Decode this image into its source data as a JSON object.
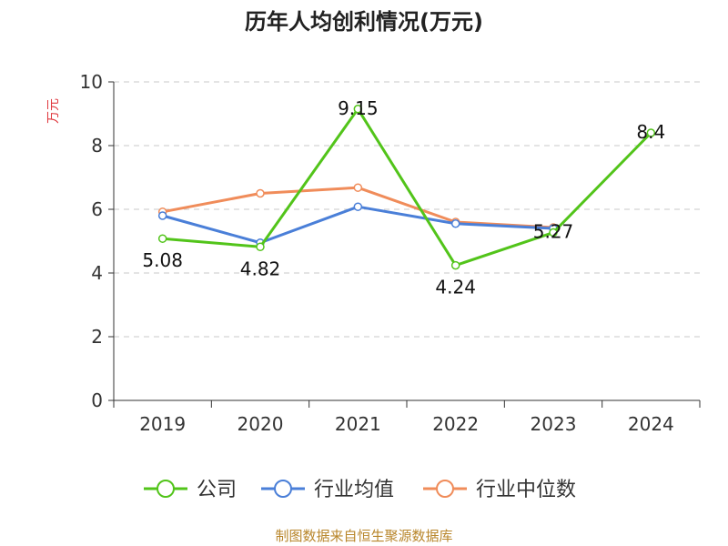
{
  "chart_data": {
    "type": "line",
    "title": "历年人均创利情况(万元)",
    "ylabel": "万元",
    "xlabel": "",
    "categories": [
      "2019",
      "2020",
      "2021",
      "2022",
      "2023",
      "2024"
    ],
    "ylim": [
      0,
      10
    ],
    "yticks": [
      0,
      2,
      4,
      6,
      8,
      10
    ],
    "grid": true,
    "legend_position": "bottom",
    "series": [
      {
        "name": "公司",
        "color": "#52c41a",
        "values": [
          5.08,
          4.82,
          9.15,
          4.24,
          5.27,
          8.4
        ],
        "labels": [
          "5.08",
          "4.82",
          "9.15",
          "4.24",
          "5.27",
          "8.4"
        ]
      },
      {
        "name": "行业均值",
        "color": "#4a7fd8",
        "values": [
          5.8,
          4.95,
          6.08,
          5.55,
          5.4,
          null
        ]
      },
      {
        "name": "行业中位数",
        "color": "#f08c5a",
        "values": [
          5.92,
          6.5,
          6.68,
          5.6,
          5.43,
          null
        ]
      }
    ]
  },
  "source": "制图数据来自恒生聚源数据库"
}
